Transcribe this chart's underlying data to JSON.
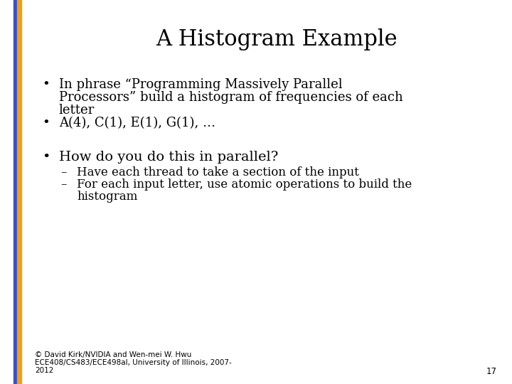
{
  "title": "A Histogram Example",
  "background_color": "#ffffff",
  "left_bar_blue": "#3a4fc4",
  "left_bar_gold": "#e8a020",
  "bullet1_line1": "In phrase “Programming Massively Parallel",
  "bullet1_line2": "Processors” build a histogram of frequencies of each",
  "bullet1_line3": "letter",
  "bullet2": "A(4), C(1), E(1), G(1), …",
  "bullet3": "How do you do this in parallel?",
  "sub1": "Have each thread to take a section of the input",
  "sub2_line1": "For each input letter, use atomic operations to build the",
  "sub2_line2": "histogram",
  "footer_line1": "© David Kirk/NVIDIA and Wen-mei W. Hwu",
  "footer_line2": "ECE408/CS483/ECE498al, University of Illinois, 2007-",
  "footer_line3": "2012",
  "page_number": "17",
  "title_fontsize": 22,
  "body_fontsize": 13,
  "body3_fontsize": 14,
  "sub_fontsize": 12,
  "footer_fontsize": 7.5
}
